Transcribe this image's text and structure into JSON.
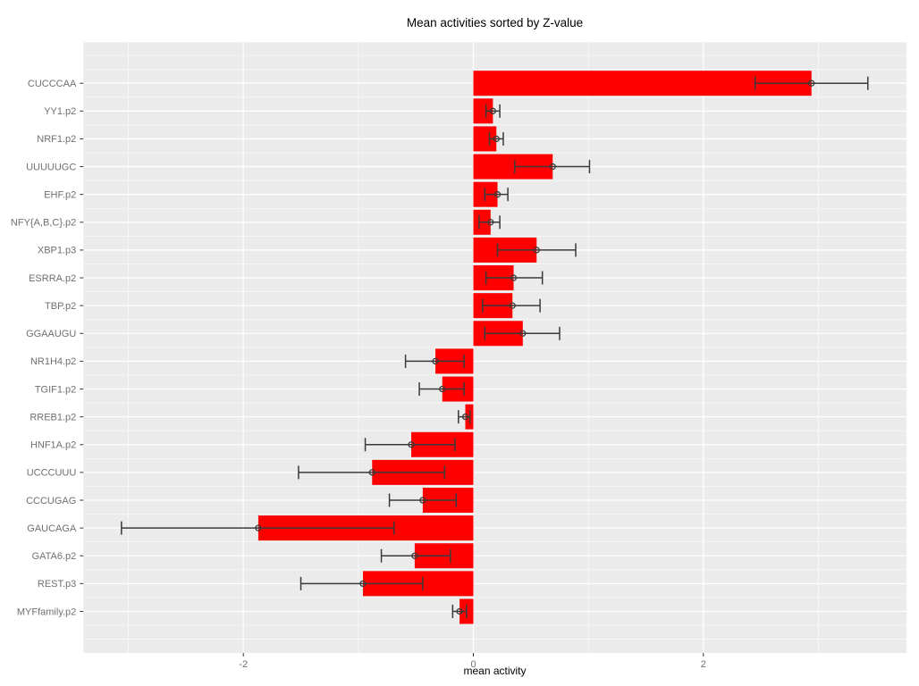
{
  "chart_data": {
    "type": "bar",
    "orientation": "horizontal",
    "title": "Mean activities sorted by Z-value",
    "xlabel": "mean activity",
    "categories": [
      "CUCCCAA",
      "YY1.p2",
      "NRF1.p2",
      "UUUUUGC",
      "EHF.p2",
      "NFY{A,B,C}.p2",
      "XBP1.p3",
      "ESRRA.p2",
      "TBP.p2",
      "GGAAUGU",
      "NR1H4.p2",
      "TGIF1.p2",
      "RREB1.p2",
      "HNF1A.p2",
      "UCCCUUU",
      "CCCUGAG",
      "GAUCAGA",
      "GATA6.p2",
      "REST.p3",
      "MYFfamily.p2"
    ],
    "values": [
      2.94,
      0.17,
      0.2,
      0.69,
      0.21,
      0.15,
      0.55,
      0.35,
      0.34,
      0.43,
      -0.33,
      -0.27,
      -0.07,
      -0.54,
      -0.88,
      -0.44,
      -1.87,
      -0.51,
      -0.96,
      -0.12
    ],
    "error_low": [
      2.45,
      0.11,
      0.14,
      0.36,
      0.1,
      0.05,
      0.21,
      0.11,
      0.08,
      0.1,
      -0.59,
      -0.47,
      -0.13,
      -0.94,
      -1.52,
      -0.73,
      -3.06,
      -0.8,
      -1.5,
      -0.18
    ],
    "error_high": [
      3.43,
      0.23,
      0.26,
      1.01,
      0.3,
      0.23,
      0.89,
      0.6,
      0.58,
      0.75,
      -0.08,
      -0.08,
      -0.03,
      -0.16,
      -0.25,
      -0.15,
      -0.69,
      -0.2,
      -0.44,
      -0.06
    ],
    "xticks": [
      -2,
      0,
      2
    ],
    "xticks_minor": [
      -3,
      -1,
      1,
      3
    ],
    "xlim": [
      -3.39,
      3.77
    ],
    "grid": true,
    "legend": "none",
    "colors": {
      "bar": "#FF0000",
      "panel_bg": "#EBEBEB",
      "grid_major": "#FFFFFF",
      "grid_minor": "#FFFFFF",
      "error_bar": "#3A3A3A",
      "tick_mark": "#333333",
      "axis_text": "#6F6F6F",
      "title_text": "#000000"
    }
  }
}
